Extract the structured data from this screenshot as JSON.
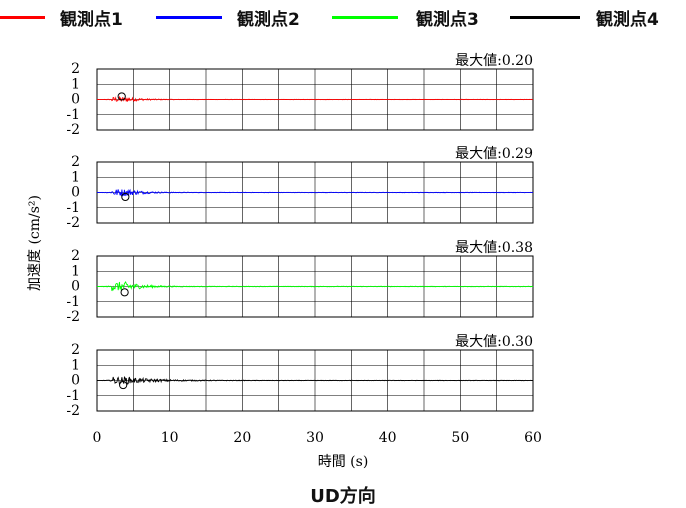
{
  "legend": [
    {
      "label": "観測点1",
      "color": "#ff0000"
    },
    {
      "label": "観測点2",
      "color": "#0000ff"
    },
    {
      "label": "観測点3",
      "color": "#00ff00"
    },
    {
      "label": "観測点4",
      "color": "#000000"
    }
  ],
  "caption": "UD方向",
  "chart_data": {
    "type": "line",
    "xlabel": "時間 (s)",
    "ylabel": "加速度 (cm/s²)",
    "xlim": [
      0,
      60
    ],
    "ylim": [
      -2,
      2
    ],
    "xticks": [
      0,
      10,
      20,
      30,
      40,
      50,
      60
    ],
    "yticks": [
      2,
      1,
      0,
      -1,
      -2
    ],
    "grid": true,
    "legend_position": "top",
    "panels": [
      {
        "series": "観測点1",
        "color": "#ff0000",
        "max_label": "最大値:0.20",
        "max_value": 0.2,
        "marker": {
          "x": 3.4,
          "y": 0.2
        }
      },
      {
        "series": "観測点2",
        "color": "#0000ff",
        "max_label": "最大値:0.29",
        "max_value": 0.29,
        "marker": {
          "x": 3.9,
          "y": -0.29
        }
      },
      {
        "series": "観測点3",
        "color": "#00ff00",
        "max_label": "最大値:0.38",
        "max_value": 0.38,
        "marker": {
          "x": 3.8,
          "y": -0.38
        }
      },
      {
        "series": "観測点4",
        "color": "#000000",
        "max_label": "最大値:0.30",
        "max_value": 0.3,
        "marker": {
          "x": 3.6,
          "y": -0.3
        }
      }
    ]
  }
}
